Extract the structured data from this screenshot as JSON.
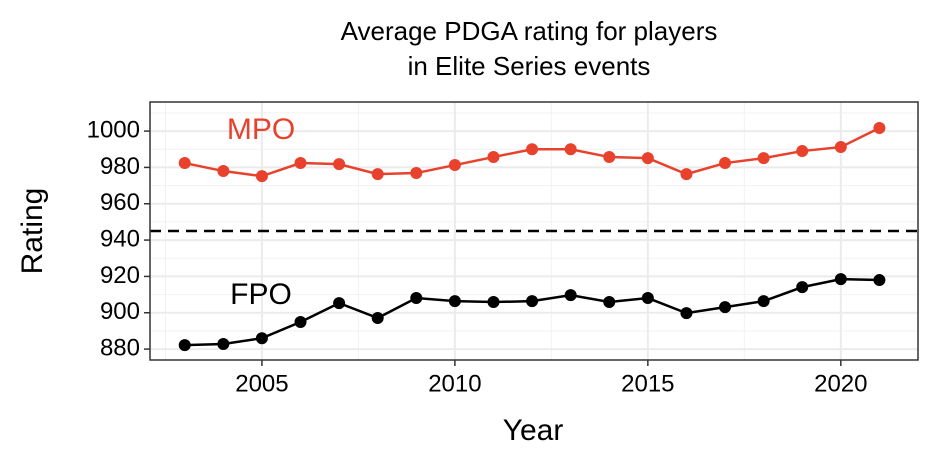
{
  "chart_data": {
    "type": "line",
    "title": [
      "Average PDGA rating for players",
      "in Elite Series events"
    ],
    "x_label": "Year",
    "y_label": "Rating",
    "x": [
      2003,
      2004,
      2005,
      2006,
      2007,
      2008,
      2009,
      2010,
      2011,
      2012,
      2013,
      2014,
      2015,
      2016,
      2017,
      2018,
      2019,
      2020,
      2021
    ],
    "series": [
      {
        "name": "MPO",
        "color": "#e8412c",
        "values": [
          982.4,
          978,
          975.2,
          982.4,
          981.8,
          976.3,
          976.9,
          981.3,
          985.7,
          990,
          990,
          985.7,
          985.1,
          976.3,
          982.4,
          985.1,
          989,
          991.2,
          1001.7
        ]
      },
      {
        "name": "FPO",
        "color": "#000000",
        "values": [
          882.2,
          882.8,
          886,
          894.9,
          905.3,
          897.1,
          908.1,
          906.4,
          905.9,
          906.4,
          909.7,
          905.9,
          908.1,
          899.8,
          903.1,
          906.4,
          914.1,
          918.5,
          918
        ]
      }
    ],
    "hline": 945,
    "xlim": [
      2002.1,
      2022
    ],
    "ylim": [
      874,
      1016
    ],
    "xticks": [
      2005,
      2010,
      2015,
      2020
    ],
    "yticks": [
      880,
      900,
      920,
      940,
      960,
      980,
      1000
    ],
    "grid": true
  }
}
